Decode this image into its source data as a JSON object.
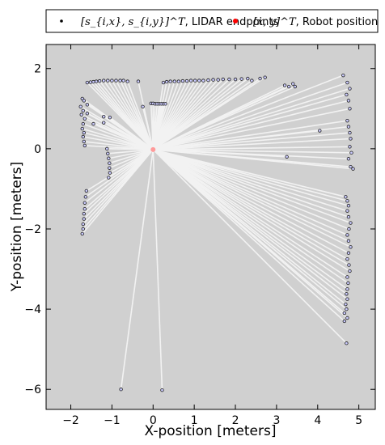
{
  "chart_data": {
    "type": "scatter",
    "xlabel": "X-position [meters]",
    "ylabel": "Y-position [meters]",
    "xlim": [
      -2.6,
      5.4
    ],
    "ylim": [
      -6.5,
      2.6
    ],
    "xticks": [
      -2,
      -1,
      0,
      1,
      2,
      3,
      4,
      5
    ],
    "yticks": [
      -6,
      -4,
      -2,
      0,
      2
    ],
    "grid": false,
    "legend_position": "top",
    "legend": {
      "lidar_math": "[s_{i,x}, s_{i,y}]^T",
      "lidar_label": ", LIDAR endpoints",
      "robot_math": "[x, y]^T",
      "robot_label": ", Robot position"
    },
    "colors": {
      "plot_background": "#d0d0d0",
      "rays": "#f2f2f2",
      "endpoint_fill": "#ccccff",
      "endpoint_edge": "#222222",
      "robot": "#ff9a9a",
      "legend_robot": "#ff0000"
    },
    "series": [
      {
        "name": "LIDAR endpoints",
        "points": [
          [
            -1.6,
            1.65
          ],
          [
            -1.52,
            1.66
          ],
          [
            -1.45,
            1.67
          ],
          [
            -1.38,
            1.68
          ],
          [
            -1.3,
            1.69
          ],
          [
            -1.2,
            1.7
          ],
          [
            -1.1,
            1.7
          ],
          [
            -1.0,
            1.7
          ],
          [
            -0.9,
            1.7
          ],
          [
            -0.8,
            1.7
          ],
          [
            -0.72,
            1.7
          ],
          [
            -0.62,
            1.68
          ],
          [
            -0.36,
            1.68
          ],
          [
            0.25,
            1.65
          ],
          [
            -1.72,
            1.25
          ],
          [
            -1.68,
            1.2
          ],
          [
            -1.76,
            1.05
          ],
          [
            -1.7,
            0.95
          ],
          [
            -1.74,
            0.85
          ],
          [
            -1.66,
            0.75
          ],
          [
            -1.7,
            0.62
          ],
          [
            -1.72,
            0.5
          ],
          [
            -1.68,
            0.4
          ],
          [
            -1.7,
            0.3
          ],
          [
            -1.68,
            0.18
          ],
          [
            -1.66,
            0.08
          ],
          [
            -1.6,
            1.1
          ],
          [
            -1.6,
            0.88
          ],
          [
            -1.2,
            0.8
          ],
          [
            -1.05,
            0.78
          ],
          [
            -1.2,
            0.65
          ],
          [
            -1.45,
            0.62
          ],
          [
            -0.25,
            1.05
          ],
          [
            -0.05,
            1.13
          ],
          [
            0.0,
            1.13
          ],
          [
            0.05,
            1.12
          ],
          [
            0.1,
            1.12
          ],
          [
            0.15,
            1.12
          ],
          [
            0.2,
            1.12
          ],
          [
            0.25,
            1.12
          ],
          [
            0.3,
            1.12
          ],
          [
            0.33,
            1.67
          ],
          [
            0.42,
            1.68
          ],
          [
            0.52,
            1.68
          ],
          [
            0.62,
            1.68
          ],
          [
            0.72,
            1.69
          ],
          [
            0.82,
            1.69
          ],
          [
            0.92,
            1.7
          ],
          [
            1.02,
            1.7
          ],
          [
            1.12,
            1.7
          ],
          [
            1.22,
            1.7
          ],
          [
            1.34,
            1.71
          ],
          [
            1.46,
            1.72
          ],
          [
            1.58,
            1.72
          ],
          [
            1.7,
            1.73
          ],
          [
            1.85,
            1.73
          ],
          [
            2.0,
            1.73
          ],
          [
            2.15,
            1.74
          ],
          [
            2.3,
            1.75
          ],
          [
            2.4,
            1.7
          ],
          [
            2.6,
            1.75
          ],
          [
            2.72,
            1.78
          ],
          [
            3.2,
            1.58
          ],
          [
            3.3,
            1.55
          ],
          [
            3.4,
            1.62
          ],
          [
            3.45,
            1.55
          ],
          [
            4.62,
            1.83
          ],
          [
            4.72,
            1.65
          ],
          [
            4.78,
            1.5
          ],
          [
            4.7,
            1.35
          ],
          [
            4.75,
            1.2
          ],
          [
            4.78,
            1.0
          ],
          [
            4.72,
            0.7
          ],
          [
            4.75,
            0.55
          ],
          [
            4.78,
            0.4
          ],
          [
            4.8,
            0.25
          ],
          [
            4.78,
            0.05
          ],
          [
            4.82,
            -0.1
          ],
          [
            4.75,
            -0.25
          ],
          [
            4.8,
            -0.45
          ],
          [
            4.86,
            -0.5
          ],
          [
            4.05,
            0.45
          ],
          [
            3.25,
            -0.2
          ],
          [
            -1.12,
            0.0
          ],
          [
            -1.1,
            -0.12
          ],
          [
            -1.08,
            -0.24
          ],
          [
            -1.06,
            -0.36
          ],
          [
            -1.06,
            -0.48
          ],
          [
            -1.05,
            -0.6
          ],
          [
            -1.08,
            -0.72
          ],
          [
            -1.62,
            -1.05
          ],
          [
            -1.64,
            -1.2
          ],
          [
            -1.66,
            -1.35
          ],
          [
            -1.66,
            -1.5
          ],
          [
            -1.68,
            -1.62
          ],
          [
            -1.68,
            -1.75
          ],
          [
            -1.7,
            -1.88
          ],
          [
            -1.7,
            -2.0
          ],
          [
            -1.72,
            -2.12
          ],
          [
            4.68,
            -1.2
          ],
          [
            4.72,
            -1.3
          ],
          [
            4.75,
            -1.42
          ],
          [
            4.72,
            -1.55
          ],
          [
            4.75,
            -1.7
          ],
          [
            4.8,
            -1.85
          ],
          [
            4.76,
            -2.0
          ],
          [
            4.72,
            -2.15
          ],
          [
            4.75,
            -2.3
          ],
          [
            4.8,
            -2.45
          ],
          [
            4.75,
            -2.6
          ],
          [
            4.72,
            -2.75
          ],
          [
            4.76,
            -2.9
          ],
          [
            4.78,
            -3.05
          ],
          [
            4.72,
            -3.2
          ],
          [
            4.74,
            -3.35
          ],
          [
            4.72,
            -3.5
          ],
          [
            4.7,
            -3.62
          ],
          [
            4.72,
            -3.75
          ],
          [
            4.68,
            -3.88
          ],
          [
            4.7,
            -4.0
          ],
          [
            4.65,
            -4.1
          ],
          [
            4.72,
            -4.22
          ],
          [
            4.65,
            -4.3
          ],
          [
            4.7,
            -4.85
          ],
          [
            -0.78,
            -6.0
          ],
          [
            0.22,
            -6.02
          ]
        ]
      },
      {
        "name": "Robot position",
        "points": [
          [
            0.0,
            -0.02
          ]
        ]
      }
    ]
  }
}
